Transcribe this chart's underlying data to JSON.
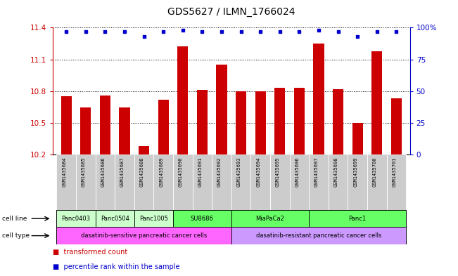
{
  "title": "GDS5627 / ILMN_1766024",
  "samples": [
    "GSM1435684",
    "GSM1435685",
    "GSM1435686",
    "GSM1435687",
    "GSM1435688",
    "GSM1435689",
    "GSM1435690",
    "GSM1435691",
    "GSM1435692",
    "GSM1435693",
    "GSM1435694",
    "GSM1435695",
    "GSM1435696",
    "GSM1435697",
    "GSM1435698",
    "GSM1435699",
    "GSM1435700",
    "GSM1435701"
  ],
  "bar_values": [
    10.75,
    10.65,
    10.76,
    10.65,
    10.28,
    10.72,
    11.22,
    10.81,
    11.05,
    10.8,
    10.8,
    10.83,
    10.83,
    11.25,
    10.82,
    10.5,
    11.18,
    10.73
  ],
  "percentile_values": [
    97,
    97,
    97,
    97,
    93,
    97,
    98,
    97,
    97,
    97,
    97,
    97,
    97,
    98,
    97,
    93,
    97,
    97
  ],
  "bar_color": "#cc0000",
  "percentile_color": "#0000cc",
  "ylim_left": [
    10.2,
    11.4
  ],
  "ylim_right": [
    0,
    100
  ],
  "yticks_left": [
    10.2,
    10.5,
    10.8,
    11.1,
    11.4
  ],
  "yticks_right": [
    0,
    25,
    50,
    75,
    100
  ],
  "cl_groups": [
    {
      "label": "Panc0403",
      "start": 0,
      "end": 1,
      "color": "#ccffcc"
    },
    {
      "label": "Panc0504",
      "start": 2,
      "end": 3,
      "color": "#ccffcc"
    },
    {
      "label": "Panc1005",
      "start": 4,
      "end": 5,
      "color": "#ccffcc"
    },
    {
      "label": "SU8686",
      "start": 6,
      "end": 8,
      "color": "#66ff66"
    },
    {
      "label": "MiaPaCa2",
      "start": 9,
      "end": 12,
      "color": "#66ff66"
    },
    {
      "label": "Panc1",
      "start": 13,
      "end": 17,
      "color": "#66ff66"
    }
  ],
  "ct_groups": [
    {
      "label": "dasatinib-sensitive pancreatic cancer cells",
      "start": 0,
      "end": 8,
      "color": "#ff66ff"
    },
    {
      "label": "dasatinib-resistant pancreatic cancer cells",
      "start": 9,
      "end": 17,
      "color": "#cc99ff"
    }
  ],
  "background_color": "#ffffff",
  "sample_bg_color": "#cccccc"
}
